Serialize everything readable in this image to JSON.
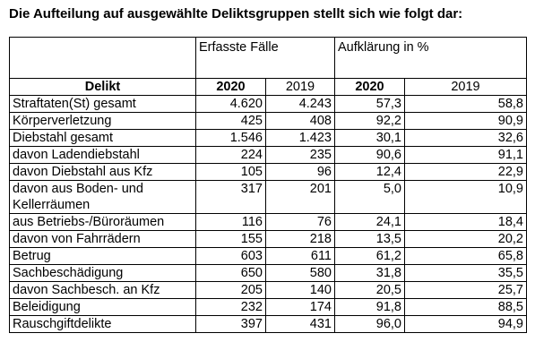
{
  "title": "Die Aufteilung auf ausgewählte Deliktsgruppen stellt sich wie folgt dar:",
  "table": {
    "group_headers": {
      "erfasste": "Erfasste Fälle",
      "aufklaerung": "Aufklärung in %"
    },
    "column_headers": {
      "delikt": "Delikt",
      "erfasste_2020": "2020",
      "erfasste_2019": "2019",
      "aufklaerung_2020": "2020",
      "aufklaerung_2019": "2019"
    },
    "rows": [
      {
        "delikt": "Straftaten(St) gesamt",
        "ef2020": "4.620",
        "ef2019": "4.243",
        "au2020": "57,3",
        "au2019": "58,8"
      },
      {
        "delikt": "Körperverletzung",
        "ef2020": "425",
        "ef2019": "408",
        "au2020": "92,2",
        "au2019": "90,9"
      },
      {
        "delikt": "Diebstahl gesamt",
        "ef2020": "1.546",
        "ef2019": "1.423",
        "au2020": "30,1",
        "au2019": "32,6"
      },
      {
        "delikt": "davon Ladendiebstahl",
        "ef2020": "224",
        "ef2019": "235",
        "au2020": "90,6",
        "au2019": "91,1"
      },
      {
        "delikt": "davon Diebstahl aus Kfz",
        "ef2020": "105",
        "ef2019": "96",
        "au2020": "12,4",
        "au2019": "22,9"
      },
      {
        "delikt": "davon aus Boden- und Kellerräumen",
        "ef2020": "317",
        "ef2019": "201",
        "au2020": "5,0",
        "au2019": "10,9"
      },
      {
        "delikt": "aus Betriebs-/Büroräumen",
        "ef2020": "116",
        "ef2019": "76",
        "au2020": "24,1",
        "au2019": "18,4"
      },
      {
        "delikt": "davon von Fahrrädern",
        "ef2020": "155",
        "ef2019": "218",
        "au2020": "13,5",
        "au2019": "20,2"
      },
      {
        "delikt": "Betrug",
        "ef2020": "603",
        "ef2019": "611",
        "au2020": "61,2",
        "au2019": "65,8"
      },
      {
        "delikt": "Sachbeschädigung",
        "ef2020": "650",
        "ef2019": "580",
        "au2020": "31,8",
        "au2019": "35,5"
      },
      {
        "delikt": "davon Sachbesch. an Kfz",
        "ef2020": "205",
        "ef2019": "140",
        "au2020": "20,5",
        "au2019": "25,7"
      },
      {
        "delikt": "Beleidigung",
        "ef2020": "232",
        "ef2019": "174",
        "au2020": "91,8",
        "au2019": "88,5"
      },
      {
        "delikt": "Rauschgiftdelikte",
        "ef2020": "397",
        "ef2019": "431",
        "au2020": "96,0",
        "au2019": "94,9"
      }
    ]
  }
}
